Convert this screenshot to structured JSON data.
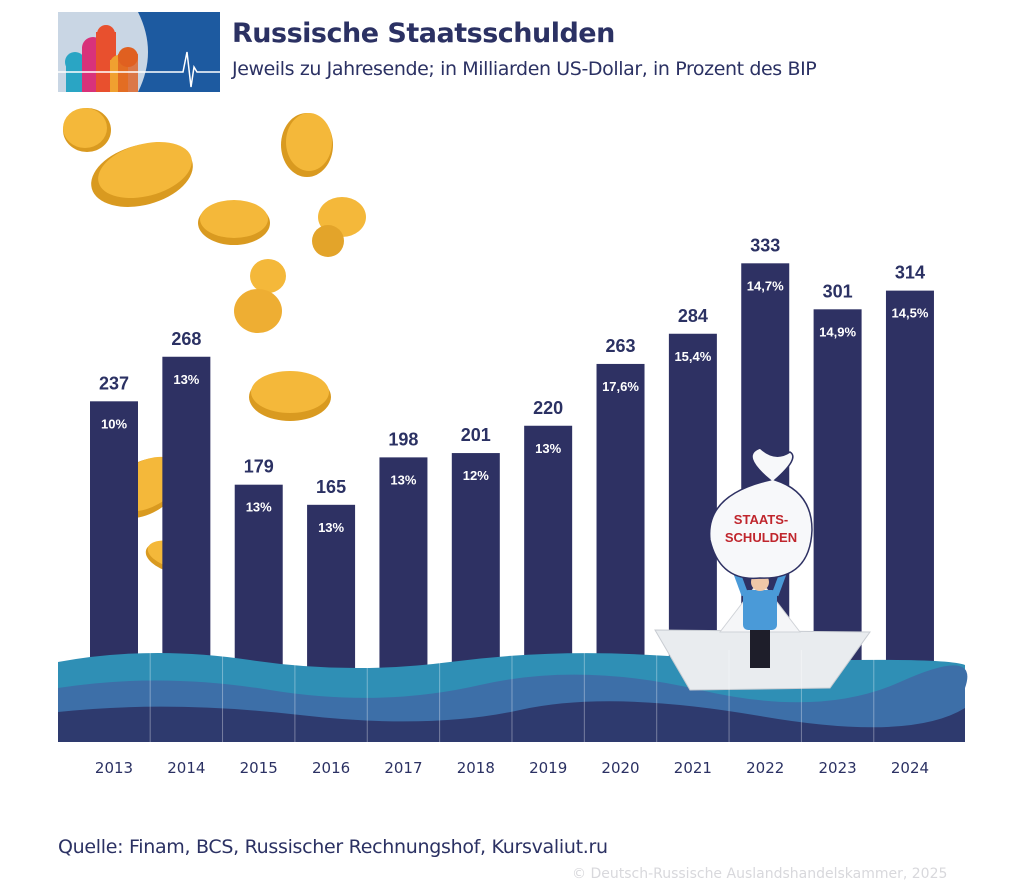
{
  "header": {
    "title": "Russische Staatsschulden",
    "subtitle": "Jeweils zu Jahresende; in Milliarden US-Dollar, in Prozent des BIP"
  },
  "illustration": {
    "bag_label_1": "STAATS-",
    "bag_label_2": "SCHULDEN"
  },
  "footer": {
    "source": "Quelle: Finam, BCS, Russischer Rechnungshof, Kursvaliut.ru",
    "copyright": "© Deutsch-Russische Auslandshandelskammer, 2025"
  },
  "colors": {
    "bar": "#2e3163",
    "title": "#2b3163",
    "water_light": "#2f8fb5",
    "water_mid": "#3d6fa8",
    "water_dark": "#2e3a6e",
    "coin": "#f2b233"
  },
  "chart_data": {
    "type": "bar",
    "title": "Russische Staatsschulden",
    "categories": [
      "2013",
      "2014",
      "2015",
      "2016",
      "2017",
      "2018",
      "2019",
      "2020",
      "2021",
      "2022",
      "2023",
      "2024"
    ],
    "values": [
      237,
      268,
      179,
      165,
      198,
      201,
      220,
      263,
      284,
      333,
      301,
      314
    ],
    "percent_gdp": [
      "10%",
      "13%",
      "13%",
      "13%",
      "13%",
      "12%",
      "13%",
      "17,6%",
      "15,4%",
      "14,7%",
      "14,9%",
      "14,5%"
    ],
    "xlabel": "",
    "ylabel": "Milliarden US-Dollar",
    "ylim": [
      0,
      350
    ],
    "grid": false,
    "legend": "none"
  }
}
